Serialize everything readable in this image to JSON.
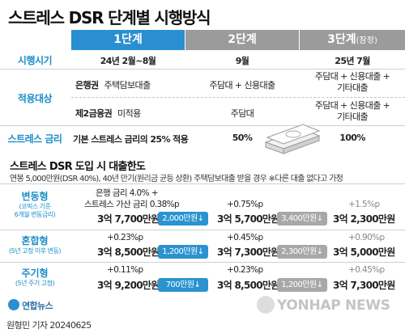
{
  "title": "스트레스 DSR 단계별 시행방식",
  "columns": [
    {
      "label": "1단계",
      "suffix": ""
    },
    {
      "label": "2단계",
      "suffix": ""
    },
    {
      "label": "3단계",
      "suffix": "(잠정)"
    }
  ],
  "rows": {
    "schedule": {
      "label": "시행시기",
      "c1": "24년 2월~8월",
      "c2": "9월",
      "c3": "25년 7월"
    },
    "target": {
      "label": "적용대상",
      "bank_label": "은행권",
      "bank_c1": "주택담보대출",
      "bank_c2": "주담대 + 신용대출",
      "bank_c3a": "주담대 + 신용대출 +",
      "bank_c3b": "기타대출",
      "second_label": "제2금융권",
      "second_c1": "미적용",
      "second_c2": "주담대",
      "second_c3a": "주담대 + 신용대출 +",
      "second_c3b": "기타대출"
    },
    "stress_rate": {
      "label": "스트레스 금리",
      "c1": "기본 스트레스 금리의 25% 적용",
      "c2": "50%",
      "c3": "100%"
    }
  },
  "limit_section": {
    "title": "스트레스 DSR 도입 시 대출한도",
    "note": "연봉 5,000만원(DSR 40%), 40년 만기(원리금 균등 상환) 주택담보대출 받을 경우  ※다른 대출 없다고 가정"
  },
  "groups": [
    {
      "label": "변동형",
      "sub1": "(코픽스 기준",
      "sub2": "6개월 변동금리)",
      "c1_line1": "은행 금리 4.0% +",
      "c1_line2": "스트레스 가산 금리 0.38%p",
      "c1_amount": "3억 7,700만원",
      "c1_badge": "2,000만원↓",
      "c2_rate": "+0.75%p",
      "c2_amount": "3억 5,700만원",
      "c2_badge": "3,400만원↓",
      "c3_rate": "+1.5%p",
      "c3_amount": "3억 2,300만원"
    },
    {
      "label": "혼합형",
      "sub1": "(5년 고정 이후 변동)",
      "sub2": "",
      "c1_rate": "+0.23%p",
      "c1_amount": "3억 8,500만원",
      "c1_badge": "1,200만원↓",
      "c2_rate": "+0.45%p",
      "c2_amount": "3억 7,300만원",
      "c2_badge": "2,300만원↓",
      "c3_rate": "+0.90%p",
      "c3_amount": "3억 5,000만원"
    },
    {
      "label": "주기형",
      "sub1": "(5년 주기 고정)",
      "sub2": "",
      "c1_rate": "+0.11%p",
      "c1_amount": "3억 9,200만원",
      "c1_badge": "700만원↓",
      "c2_rate": "+0.23%p",
      "c2_amount": "3억 8,500만원",
      "c2_badge": "1,200만원↓",
      "c3_rate": "+0.45%p",
      "c3_amount": "3억 7,300만원"
    }
  ],
  "footer": {
    "logo_text": "연합뉴스",
    "credit": "원형민 기자  20240625",
    "watermark": "YONHAP NEWS"
  },
  "colors": {
    "accent_blue": "#2a93d0",
    "header_blue": "#2a8fd0",
    "header_gray": "#9b9b9b",
    "label_blue": "#1a8ec6",
    "badge_gray": "#a8a8a8"
  }
}
